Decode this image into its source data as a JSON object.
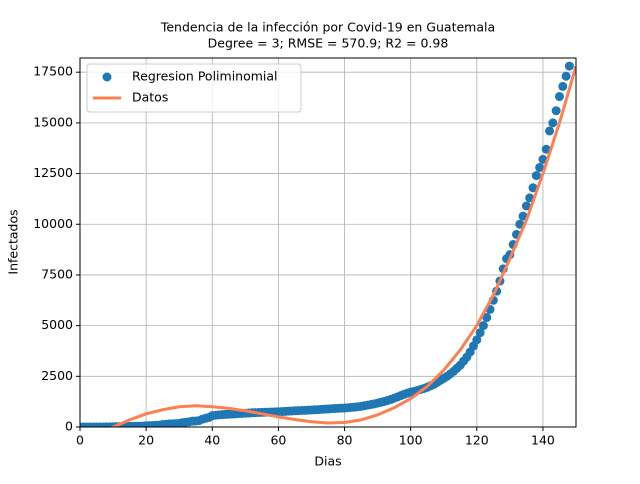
{
  "chart_data": {
    "type": "scatter",
    "title": "Tendencia de la infección por Covid-19 en Guatemala",
    "subtitle": "Degree = 3; RMSE = 570.9; R2 = 0.98",
    "x_label": "Dias",
    "y_label": "Infectados",
    "xlim": [
      0,
      150
    ],
    "ylim": [
      0,
      18200
    ],
    "xticks": [
      0,
      20,
      40,
      60,
      80,
      100,
      120,
      140
    ],
    "yticks": [
      0,
      2500,
      5000,
      7500,
      10000,
      12500,
      15000,
      17500
    ],
    "grid": true,
    "legend": "upper-left",
    "series": [
      {
        "name": "Regresion Poliminomial",
        "kind": "scatter",
        "color": "#1f77b4",
        "x": [
          0,
          1,
          2,
          3,
          4,
          5,
          6,
          7,
          8,
          9,
          10,
          11,
          12,
          13,
          14,
          15,
          16,
          17,
          18,
          19,
          20,
          21,
          22,
          23,
          24,
          25,
          26,
          27,
          28,
          29,
          30,
          31,
          32,
          33,
          34,
          35,
          36,
          37,
          38,
          39,
          40,
          41,
          42,
          43,
          44,
          45,
          46,
          47,
          48,
          49,
          50,
          51,
          52,
          53,
          54,
          55,
          56,
          57,
          58,
          59,
          60,
          61,
          62,
          63,
          64,
          65,
          66,
          67,
          68,
          69,
          70,
          71,
          72,
          73,
          74,
          75,
          76,
          77,
          78,
          79,
          80,
          81,
          82,
          83,
          84,
          85,
          86,
          87,
          88,
          89,
          90,
          91,
          92,
          93,
          94,
          95,
          96,
          97,
          98,
          99,
          100,
          101,
          102,
          103,
          104,
          105,
          106,
          107,
          108,
          109,
          110,
          111,
          112,
          113,
          114,
          115,
          116,
          117,
          118,
          119,
          120,
          121,
          122,
          123,
          124,
          125,
          126,
          127,
          128,
          129,
          130,
          131,
          132,
          133,
          134,
          135,
          136,
          137,
          138,
          139,
          140,
          141,
          142,
          143,
          144,
          145,
          146,
          147,
          148
        ],
        "values": [
          0,
          0,
          0,
          0,
          0,
          1,
          1,
          2,
          6,
          9,
          12,
          17,
          20,
          21,
          24,
          28,
          34,
          36,
          38,
          46,
          61,
          70,
          77,
          87,
          95,
          126,
          137,
          155,
          156,
          167,
          180,
          214,
          235,
          257,
          289,
          294,
          316,
          384,
          430,
          473,
          560,
          580,
          600,
          610,
          620,
          630,
          640,
          650,
          660,
          670,
          680,
          690,
          700,
          710,
          715,
          720,
          730,
          735,
          740,
          745,
          750,
          760,
          770,
          780,
          790,
          800,
          810,
          815,
          820,
          830,
          840,
          850,
          860,
          870,
          880,
          890,
          900,
          910,
          920,
          930,
          940,
          950,
          965,
          980,
          1000,
          1020,
          1050,
          1080,
          1110,
          1140,
          1180,
          1220,
          1260,
          1310,
          1360,
          1420,
          1480,
          1550,
          1610,
          1670,
          1720,
          1760,
          1800,
          1850,
          1900,
          1960,
          2030,
          2100,
          2200,
          2300,
          2400,
          2500,
          2620,
          2750,
          2900,
          3050,
          3250,
          3450,
          3700,
          4000,
          4300,
          4650,
          5000,
          5400,
          5800,
          6250,
          6700,
          7200,
          7800,
          8300,
          8500,
          9000,
          9500,
          10000,
          10400,
          10900,
          11300,
          11800,
          12400,
          12800,
          13200,
          13700,
          14600,
          15000,
          15600,
          16300,
          16800,
          17300,
          17800
        ]
      },
      {
        "name": "Datos",
        "kind": "line",
        "color": "#ff7f50",
        "x": [
          0,
          5,
          10,
          15,
          20,
          25,
          30,
          35,
          40,
          45,
          50,
          55,
          60,
          65,
          70,
          75,
          80,
          85,
          90,
          95,
          100,
          105,
          110,
          115,
          120,
          125,
          130,
          135,
          140,
          145,
          150
        ],
        "values": [
          -900,
          -400,
          0,
          350,
          650,
          850,
          1000,
          1050,
          1000,
          920,
          800,
          650,
          500,
          370,
          260,
          200,
          220,
          350,
          600,
          950,
          1400,
          2000,
          2800,
          3800,
          5000,
          6500,
          8300,
          10200,
          12500,
          15000,
          17800
        ]
      }
    ]
  }
}
